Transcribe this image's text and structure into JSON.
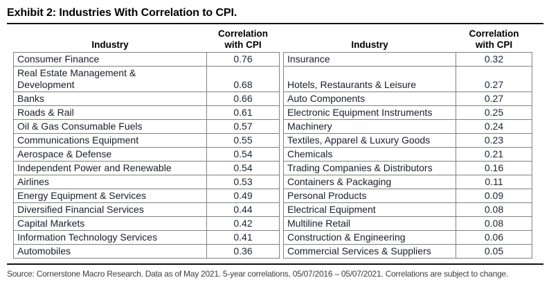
{
  "exhibit": {
    "title": "Exhibit 2: Industries With Correlation to CPI."
  },
  "table": {
    "industry_header": "Industry",
    "correlation_header": "Correlation\nwith CPI",
    "left_rows": [
      {
        "industry": "Consumer Finance",
        "value": "0.76"
      },
      {
        "industry": "Real Estate Management &\nDevelopment",
        "value": "0.68"
      },
      {
        "industry": "Banks",
        "value": "0.66"
      },
      {
        "industry": "Roads & Rail",
        "value": "0.61"
      },
      {
        "industry": "Oil & Gas Consumable Fuels",
        "value": "0.57"
      },
      {
        "industry": "Communications Equipment",
        "value": "0.55"
      },
      {
        "industry": "Aerospace & Defense",
        "value": "0.54"
      },
      {
        "industry": "Independent Power and Renewable",
        "value": "0.54"
      },
      {
        "industry": "Airlines",
        "value": "0.53"
      },
      {
        "industry": "Energy Equipment & Services",
        "value": "0.49"
      },
      {
        "industry": "Diversified Financial Services",
        "value": "0.44"
      },
      {
        "industry": "Capital Markets",
        "value": "0.42"
      },
      {
        "industry": "Information Technology Services",
        "value": "0.41"
      },
      {
        "industry": "Automobiles",
        "value": "0.36"
      }
    ],
    "right_rows": [
      {
        "industry": "Insurance",
        "value": "0.32"
      },
      {
        "industry": "Hotels, Restaurants & Leisure",
        "value": "0.27"
      },
      {
        "industry": "Auto Components",
        "value": "0.27"
      },
      {
        "industry": "Electronic Equipment Instruments",
        "value": "0.25"
      },
      {
        "industry": "Machinery",
        "value": "0.24"
      },
      {
        "industry": "Textiles, Apparel & Luxury Goods",
        "value": "0.23"
      },
      {
        "industry": "Chemicals",
        "value": "0.21"
      },
      {
        "industry": "Trading Companies & Distributors",
        "value": "0.16"
      },
      {
        "industry": "Containers & Packaging",
        "value": "0.11"
      },
      {
        "industry": "Personal Products",
        "value": "0.09"
      },
      {
        "industry": "Electrical Equipment",
        "value": "0.08"
      },
      {
        "industry": "Multiline Retail",
        "value": "0.08"
      },
      {
        "industry": "Construction & Engineering",
        "value": "0.06"
      },
      {
        "industry": "Commercial Services & Suppliers",
        "value": "0.05"
      }
    ]
  },
  "footer": {
    "source": "Source: Cornerstone Macro Research. Data as of May 2021. 5-year correlations, 05/07/2016 – 05/07/2021. Correlations are subject to change."
  },
  "colors": {
    "rule": "#111111",
    "table_border": "#808080",
    "body_text": "#1a1d29",
    "source_text": "#3d3d3d"
  },
  "chart_data": {
    "type": "table",
    "title": "Exhibit 2: Industries With Correlation to CPI.",
    "columns": [
      "Industry",
      "Correlation with CPI"
    ],
    "rows": [
      [
        "Consumer Finance",
        0.76
      ],
      [
        "Real Estate Management & Development",
        0.68
      ],
      [
        "Banks",
        0.66
      ],
      [
        "Roads & Rail",
        0.61
      ],
      [
        "Oil & Gas Consumable Fuels",
        0.57
      ],
      [
        "Communications Equipment",
        0.55
      ],
      [
        "Aerospace & Defense",
        0.54
      ],
      [
        "Independent Power and Renewable",
        0.54
      ],
      [
        "Airlines",
        0.53
      ],
      [
        "Energy Equipment & Services",
        0.49
      ],
      [
        "Diversified Financial Services",
        0.44
      ],
      [
        "Capital Markets",
        0.42
      ],
      [
        "Information Technology Services",
        0.41
      ],
      [
        "Automobiles",
        0.36
      ],
      [
        "Insurance",
        0.32
      ],
      [
        "Hotels, Restaurants & Leisure",
        0.27
      ],
      [
        "Auto Components",
        0.27
      ],
      [
        "Electronic Equipment Instruments",
        0.25
      ],
      [
        "Machinery",
        0.24
      ],
      [
        "Textiles, Apparel & Luxury Goods",
        0.23
      ],
      [
        "Chemicals",
        0.21
      ],
      [
        "Trading Companies & Distributors",
        0.16
      ],
      [
        "Containers & Packaging",
        0.11
      ],
      [
        "Personal Products",
        0.09
      ],
      [
        "Electrical Equipment",
        0.08
      ],
      [
        "Multiline Retail",
        0.08
      ],
      [
        "Construction & Engineering",
        0.06
      ],
      [
        "Commercial Services & Suppliers",
        0.05
      ]
    ]
  }
}
